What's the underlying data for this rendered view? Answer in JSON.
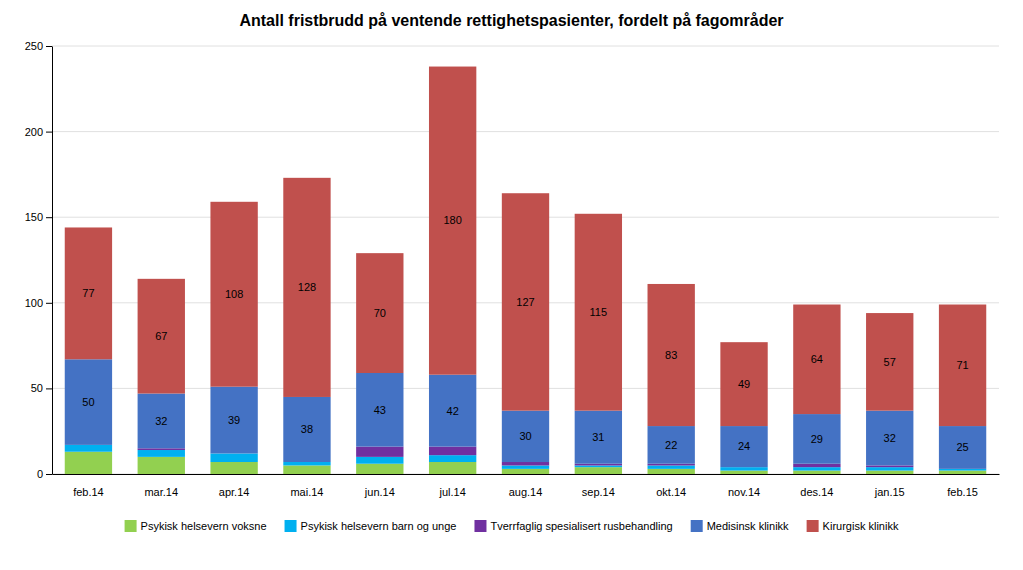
{
  "chart_data": {
    "type": "bar",
    "stacked": true,
    "title": "Antall fristbrudd på ventende rettighetspasienter, fordelt på fagområder",
    "categories": [
      "feb.14",
      "mar.14",
      "apr.14",
      "mai.14",
      "jun.14",
      "jul.14",
      "aug.14",
      "sep.14",
      "okt.14",
      "nov.14",
      "des.14",
      "jan.15",
      "feb.15"
    ],
    "series": [
      {
        "name": "Psykisk helsevern voksne",
        "color": "#92d050",
        "values": [
          13,
          10,
          7,
          5,
          6,
          7,
          3,
          4,
          3,
          2,
          2,
          2,
          2
        ]
      },
      {
        "name": "Psykisk helsevern barn og unge",
        "color": "#00b0f0",
        "values": [
          4,
          4,
          5,
          2,
          4,
          4,
          2,
          1,
          2,
          2,
          2,
          2,
          1
        ]
      },
      {
        "name": "Tverrfaglig spesialisert rusbehandling",
        "color": "#7030a0",
        "values": [
          0,
          1,
          0,
          0,
          6,
          5,
          2,
          1,
          1,
          0,
          2,
          1,
          0
        ]
      },
      {
        "name": "Medisinsk klinikk",
        "color": "#4472c4",
        "values": [
          50,
          32,
          39,
          38,
          43,
          42,
          30,
          31,
          22,
          24,
          29,
          32,
          25
        ],
        "data_labels": true
      },
      {
        "name": "Kirurgisk klinikk",
        "color": "#c0504d",
        "values": [
          77,
          67,
          108,
          128,
          70,
          180,
          127,
          115,
          83,
          49,
          64,
          57,
          71
        ],
        "data_labels": true
      }
    ],
    "ylim": [
      0,
      250
    ],
    "yticks": [
      0,
      50,
      100,
      150,
      200,
      250
    ],
    "grid": true,
    "legend": "bottom"
  }
}
